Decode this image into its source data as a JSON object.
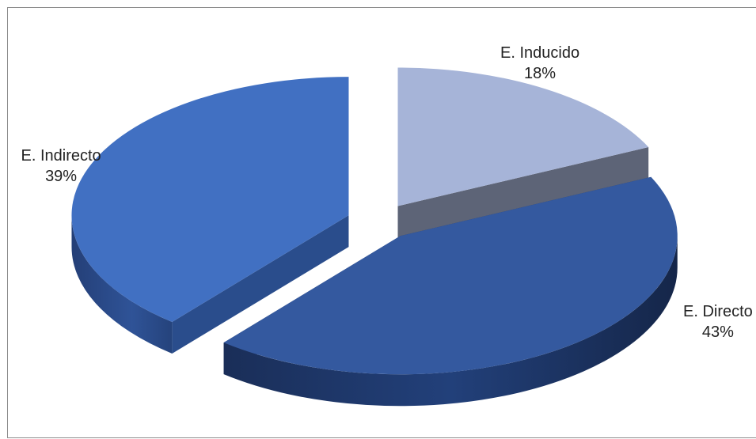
{
  "chart_data": {
    "type": "pie",
    "style": "3d-exploded",
    "slices": [
      {
        "label": "E. Inducido",
        "value": 18,
        "value_label": "18%",
        "color": "#a6b4d8",
        "side_color": "#5d6477"
      },
      {
        "label": "E. Directo",
        "value": 43,
        "value_label": "43%",
        "color": "#34599f",
        "side_color": "#1e3564"
      },
      {
        "label": "E. Indirecto",
        "value": 39,
        "value_label": "39%",
        "color": "#4170c2",
        "side_color": "#2a4d8c"
      }
    ],
    "title": "",
    "legend": "none"
  }
}
